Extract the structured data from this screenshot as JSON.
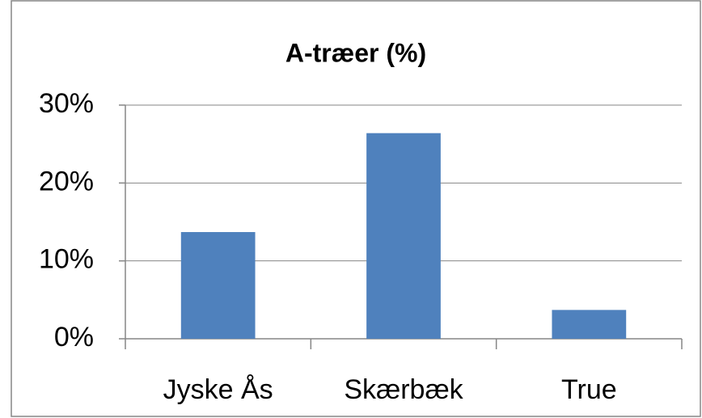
{
  "chart_data": {
    "type": "bar",
    "title": "A-træer (%)",
    "categories": [
      "Jyske Ås",
      "Skærbæk",
      "True"
    ],
    "values": [
      13.7,
      26.4,
      3.7
    ],
    "color": "#4f81bd",
    "ylim": [
      0,
      30
    ],
    "yticks": [
      {
        "value": 0,
        "label": "0%"
      },
      {
        "value": 10,
        "label": "10%"
      },
      {
        "value": 20,
        "label": "20%"
      },
      {
        "value": 30,
        "label": "30%"
      }
    ],
    "grid": true
  }
}
